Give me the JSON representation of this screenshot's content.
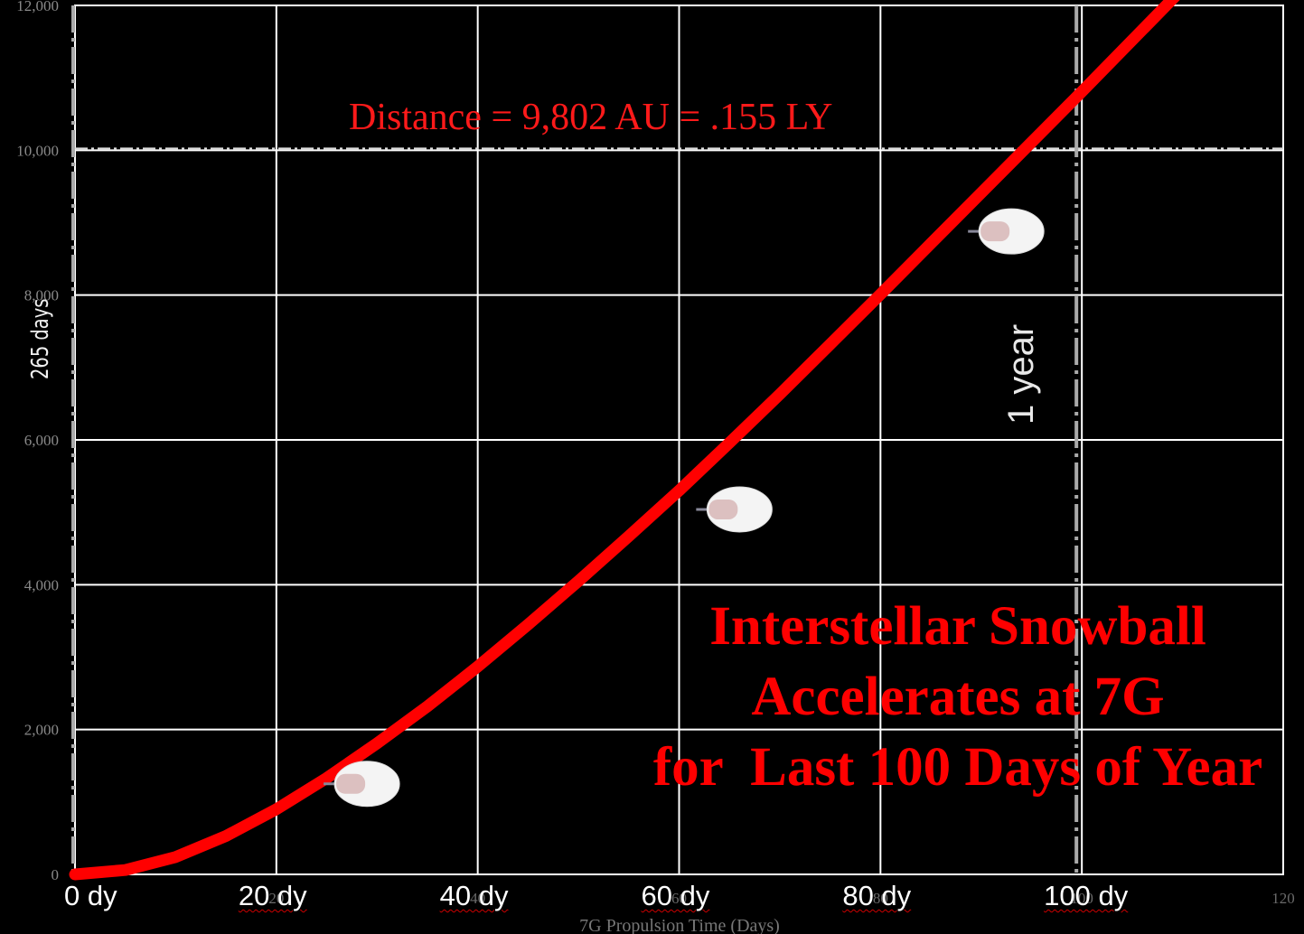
{
  "chart_data": {
    "type": "line",
    "xlabel": "7G Propulsion Time (Days)",
    "ylabel": "",
    "xlim": [
      0,
      120
    ],
    "ylim": [
      0,
      12000
    ],
    "x_ticks": [
      "",
      "20",
      "40",
      "60",
      "80",
      "100",
      "120"
    ],
    "x_tick_values": [
      0,
      20,
      40,
      60,
      80,
      100,
      120
    ],
    "y_ticks": [
      "0",
      "2,000",
      "4,000",
      "6,000",
      "8,000",
      "10,000",
      "12,000"
    ],
    "y_tick_values": [
      0,
      2000,
      4000,
      6000,
      8000,
      10000,
      12000
    ],
    "x_overlay_labels": [
      "0 dy",
      "20 dy",
      "40 dy",
      "60 dy",
      "80 dy",
      "100 dy"
    ],
    "grid": true,
    "series": [
      {
        "color": "#ff0000",
        "x": [
          0,
          5,
          10,
          15,
          20,
          25,
          30,
          35,
          40,
          45,
          50,
          55,
          60,
          65,
          70,
          75,
          80,
          85,
          90,
          95,
          100,
          105,
          110,
          115
        ],
        "values": [
          0,
          60,
          240,
          530,
          900,
          1330,
          1810,
          2320,
          2870,
          3450,
          4050,
          4670,
          5300,
          5960,
          6630,
          7320,
          8010,
          8710,
          9410,
          10110,
          10810,
          11520,
          12230,
          12940
        ]
      }
    ],
    "reference_lines": [
      {
        "orientation": "horizontal",
        "value": 10000,
        "style": "dash-dot",
        "color": "#dddddd"
      },
      {
        "orientation": "vertical",
        "value": 100,
        "style": "dash-dot",
        "color": "#aaaaaa",
        "label": "1 year"
      },
      {
        "orientation": "vertical",
        "value": 0,
        "style": "dash-dot",
        "color": "#aaaaaa",
        "label": "265 days"
      }
    ],
    "snowballs": [
      {
        "x": 29,
        "y": 1250
      },
      {
        "x": 66,
        "y": 5040
      },
      {
        "x": 93,
        "y": 8880
      }
    ],
    "annotations": {
      "distance": "Distance = 9,802 AU = .155 LY",
      "title_lines": [
        "Interstellar Snowball",
        "Accelerates at 7G",
        "for  Last 100 Days of Year"
      ],
      "year_label": "1 year",
      "days_label": "265 days"
    },
    "colors": {
      "background": "#000000",
      "curve": "#ff0000",
      "grid": "#ffffff",
      "text_red": "#ff0000"
    }
  }
}
